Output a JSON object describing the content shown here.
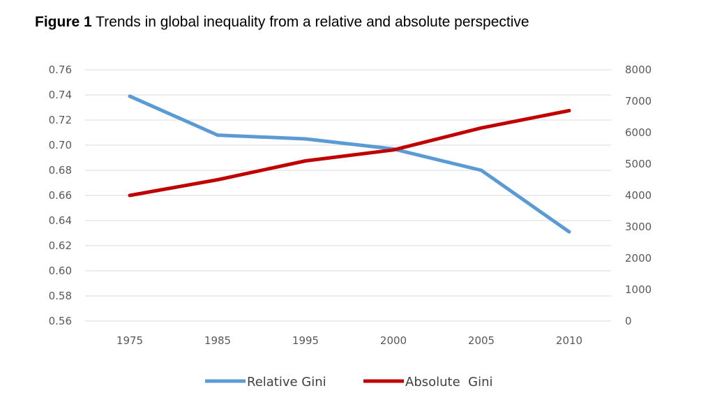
{
  "figure": {
    "label": "Figure 1",
    "caption": "Trends in global inequality from a relative and absolute perspective"
  },
  "chart_data": {
    "type": "line",
    "categories": [
      "1975",
      "1985",
      "1995",
      "2000",
      "2005",
      "2010"
    ],
    "y_left": {
      "ylim": [
        0.56,
        0.76
      ],
      "ticks": [
        "0.76",
        "0.74",
        "0.72",
        "0.70",
        "0.68",
        "0.66",
        "0.64",
        "0.62",
        "0.60",
        "0.58",
        "0.56"
      ]
    },
    "y_right": {
      "ylim": [
        0,
        8000
      ],
      "ticks": [
        "8000",
        "7000",
        "6000",
        "5000",
        "4000",
        "3000",
        "2000",
        "1000",
        "0"
      ]
    },
    "series": [
      {
        "name": "Relative Gini",
        "axis": "left",
        "color": "#5B9BD5",
        "values": [
          0.739,
          0.708,
          0.705,
          0.697,
          0.68,
          0.631
        ]
      },
      {
        "name": "Absolute  Gini",
        "axis": "right",
        "color": "#C00000",
        "values": [
          4000,
          4500,
          5100,
          5450,
          6150,
          6700
        ]
      }
    ],
    "grid": true,
    "legend": "bottom"
  }
}
